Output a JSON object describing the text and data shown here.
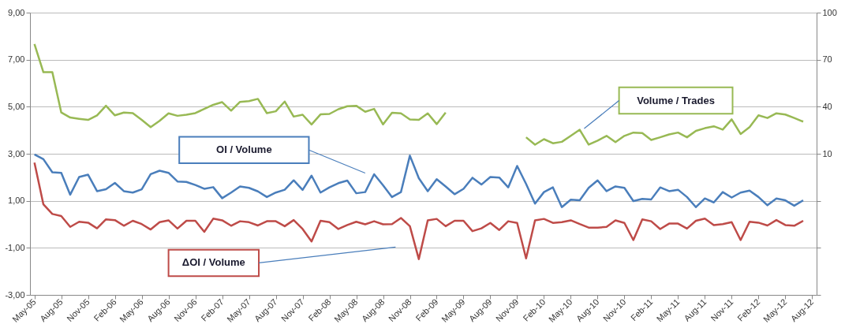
{
  "chart_data": {
    "type": "line",
    "categories": [
      "May-05",
      null,
      null,
      "Aug-05",
      null,
      null,
      "Nov-05",
      null,
      null,
      "Feb-06",
      null,
      null,
      "May-06",
      null,
      null,
      "Aug-06",
      null,
      null,
      "Nov-06",
      null,
      null,
      "Feb-07",
      null,
      null,
      "May-07",
      null,
      null,
      "Aug-07",
      null,
      null,
      "Nov-07",
      null,
      null,
      "Feb-08",
      null,
      null,
      "May-08",
      null,
      null,
      "Aug-08",
      null,
      null,
      "Nov-08",
      null,
      null,
      "Feb-09",
      null,
      null,
      "May-09",
      null,
      null,
      "Aug-09",
      null,
      null,
      "Nov-09",
      null,
      null,
      "Feb-10",
      null,
      null,
      "May-10",
      null,
      null,
      "Aug-10",
      null,
      null,
      "Nov-10",
      null,
      null,
      "Feb-11",
      null,
      null,
      "May-11",
      null,
      null,
      "Aug-11",
      null,
      null,
      "Nov-11",
      null,
      null,
      "Feb-12",
      null,
      null,
      "May-12",
      null,
      null,
      "Aug-12"
    ],
    "series": [
      {
        "name": "OI / Volume",
        "color": "#4a7ebb",
        "values": [
          2.97,
          2.77,
          2.21,
          2.19,
          1.26,
          2.01,
          2.11,
          1.41,
          1.49,
          1.76,
          1.41,
          1.35,
          1.49,
          2.13,
          2.28,
          2.19,
          1.82,
          1.8,
          1.67,
          1.51,
          1.58,
          1.11,
          1.35,
          1.61,
          1.55,
          1.4,
          1.16,
          1.35,
          1.47,
          1.87,
          1.46,
          2.07,
          1.35,
          1.57,
          1.75,
          1.86,
          1.32,
          1.37,
          2.13,
          1.66,
          1.16,
          1.37,
          2.92,
          1.96,
          1.41,
          1.92,
          1.61,
          1.28,
          1.51,
          1.98,
          1.69,
          2.01,
          1.99,
          1.57,
          2.48,
          1.72,
          0.88,
          1.37,
          1.57,
          0.73,
          1.05,
          1.02,
          1.55,
          1.87,
          1.41,
          1.61,
          1.55,
          0.99,
          1.08,
          1.06,
          1.57,
          1.41,
          1.47,
          1.16,
          0.73,
          1.1,
          0.93,
          1.37,
          1.14,
          1.35,
          1.43,
          1.16,
          0.81,
          1.1,
          1.02,
          0.79,
          1.02,
          null
        ]
      },
      {
        "name": "ΔOI / Volume",
        "color": "#be4b48",
        "values": [
          2.62,
          0.85,
          0.44,
          0.35,
          -0.11,
          0.11,
          0.07,
          -0.17,
          0.21,
          0.18,
          -0.06,
          0.15,
          0.01,
          -0.22,
          0.09,
          0.17,
          -0.18,
          0.15,
          0.15,
          -0.32,
          0.24,
          0.17,
          -0.06,
          0.13,
          0.09,
          -0.05,
          0.13,
          0.13,
          -0.08,
          0.18,
          -0.2,
          -0.73,
          0.15,
          0.09,
          -0.2,
          -0.03,
          0.11,
          0.0,
          0.13,
          0.0,
          0.01,
          0.27,
          -0.08,
          -1.48,
          0.17,
          0.23,
          -0.08,
          0.15,
          0.15,
          -0.29,
          -0.17,
          0.06,
          -0.24,
          0.13,
          0.06,
          -1.45,
          0.17,
          0.23,
          0.06,
          0.09,
          0.17,
          0.01,
          -0.14,
          -0.14,
          -0.11,
          0.17,
          0.06,
          -0.67,
          0.21,
          0.13,
          -0.2,
          0.03,
          0.03,
          -0.18,
          0.15,
          0.24,
          -0.03,
          0.01,
          0.09,
          -0.67,
          0.11,
          0.07,
          -0.05,
          0.18,
          -0.03,
          -0.06,
          0.15,
          null
        ]
      },
      {
        "name": "Volume / Trades",
        "color": "#98b954",
        "axis": "y2",
        "values": [
          80.0,
          62.0,
          62.0,
          36.3,
          33.1,
          32.3,
          31.6,
          34.5,
          40.6,
          34.5,
          36.3,
          35.9,
          31.6,
          27.0,
          31.0,
          35.8,
          34.2,
          34.9,
          35.9,
          38.6,
          41.2,
          42.9,
          37.5,
          43.1,
          43.6,
          45.0,
          35.9,
          37.1,
          43.3,
          33.7,
          34.9,
          28.7,
          35.1,
          35.4,
          38.4,
          40.3,
          40.6,
          36.8,
          38.6,
          28.7,
          36.1,
          35.8,
          31.9,
          31.6,
          35.8,
          28.9,
          36.3,
          null,
          null,
          null,
          null,
          null,
          null,
          null,
          null,
          20.5,
          15.8,
          19.3,
          16.7,
          17.6,
          21.4,
          25.3,
          15.8,
          18.4,
          21.4,
          17.4,
          21.4,
          23.5,
          23.2,
          18.8,
          20.5,
          22.3,
          23.5,
          20.5,
          24.6,
          26.3,
          27.5,
          25.4,
          31.9,
          22.6,
          27.0,
          34.5,
          32.8,
          35.8,
          35.0,
          32.8,
          30.5,
          null
        ]
      }
    ],
    "ylim": [
      -3,
      9
    ],
    "yticks": [
      {
        "value": -3,
        "label": "-3,00"
      },
      {
        "value": -1,
        "label": "-1,00"
      },
      {
        "value": 1,
        "label": "1,00"
      },
      {
        "value": 3,
        "label": "3,00"
      },
      {
        "value": 5,
        "label": "5,00"
      },
      {
        "value": 7,
        "label": "7,00"
      },
      {
        "value": 9,
        "label": "9,00"
      }
    ],
    "y2lim": [
      -80,
      100
    ],
    "y2ticks": [
      {
        "value": -80,
        "label": null
      },
      {
        "value": -50,
        "label": null
      },
      {
        "value": -20,
        "label": null
      },
      10,
      40,
      70,
      100
    ],
    "grid": "y",
    "line_style": "solid"
  }
}
